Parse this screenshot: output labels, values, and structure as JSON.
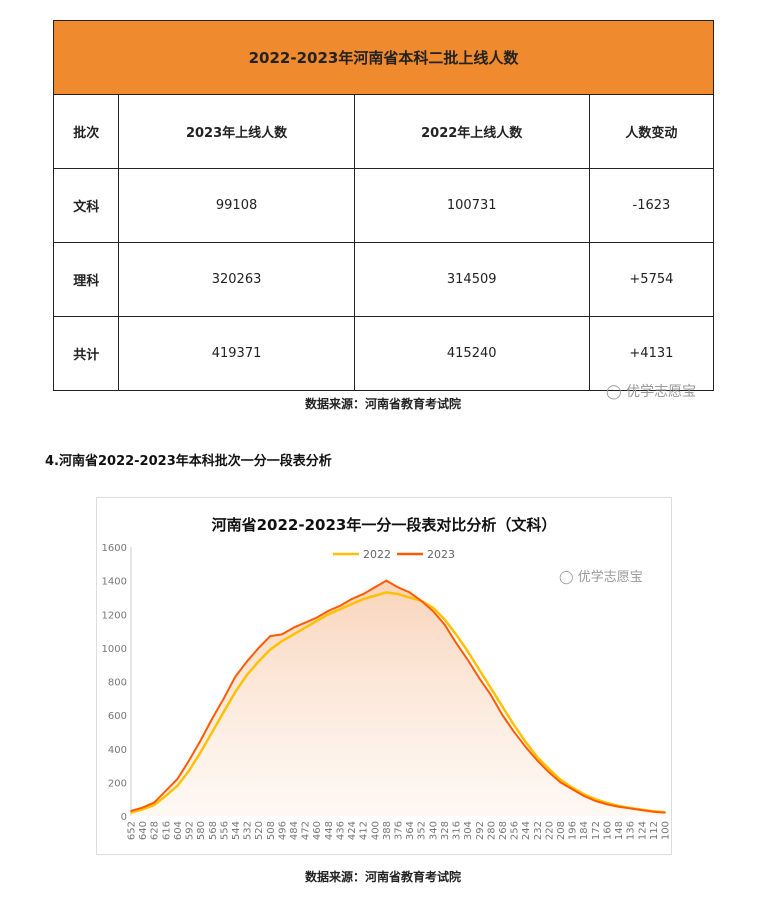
{
  "table": {
    "title": "2022-2023年河南省本科二批上线人数",
    "headers": [
      "批次",
      "2023年上线人数",
      "2022年上线人数",
      "人数变动"
    ],
    "rows": [
      [
        "文科",
        "99108",
        "100731",
        "-1623"
      ],
      [
        "理科",
        "320263",
        "314509",
        "+5754"
      ],
      [
        "共计",
        "419371",
        "415240",
        "+4131"
      ]
    ]
  },
  "source1": "数据来源：河南省教育考试院",
  "section_title": "4.河南省2022-2023年本科批次一分一段表分析",
  "watermark": "优学志愿宝",
  "source2": "数据来源：河南省教育考试院",
  "colors": {
    "header": "#ef8a2e",
    "s2022": "#ffc000",
    "s2023": "#ff5a00"
  },
  "chart_data": {
    "type": "line",
    "title": "河南省2022-2023年一分一段表对比分析（文科）",
    "xlabel": "",
    "ylabel": "",
    "ylim": [
      0,
      1600
    ],
    "yticks": [
      0,
      200,
      400,
      600,
      800,
      1000,
      1200,
      1400,
      1600
    ],
    "legend": "top-center",
    "x": [
      652,
      640,
      628,
      616,
      604,
      592,
      580,
      568,
      556,
      544,
      532,
      520,
      508,
      496,
      484,
      472,
      460,
      448,
      436,
      424,
      412,
      400,
      388,
      376,
      364,
      352,
      340,
      328,
      316,
      304,
      292,
      280,
      268,
      256,
      244,
      232,
      220,
      208,
      196,
      184,
      172,
      160,
      148,
      136,
      124,
      112,
      100
    ],
    "series": [
      {
        "name": "2022",
        "values": [
          20,
          40,
          65,
          120,
          180,
          270,
          380,
          500,
          620,
          740,
          840,
          920,
          990,
          1040,
          1080,
          1120,
          1160,
          1200,
          1230,
          1260,
          1290,
          1310,
          1330,
          1320,
          1300,
          1280,
          1240,
          1170,
          1080,
          980,
          870,
          760,
          650,
          540,
          440,
          350,
          280,
          215,
          170,
          130,
          100,
          78,
          60,
          48,
          38,
          28,
          22
        ]
      },
      {
        "name": "2023",
        "values": [
          30,
          50,
          80,
          150,
          220,
          330,
          450,
          580,
          700,
          830,
          920,
          1000,
          1070,
          1080,
          1120,
          1150,
          1180,
          1220,
          1250,
          1290,
          1320,
          1360,
          1400,
          1360,
          1330,
          1280,
          1220,
          1140,
          1030,
          930,
          820,
          720,
          600,
          500,
          410,
          330,
          260,
          200,
          160,
          120,
          90,
          70,
          55,
          45,
          35,
          25,
          20
        ]
      }
    ]
  }
}
